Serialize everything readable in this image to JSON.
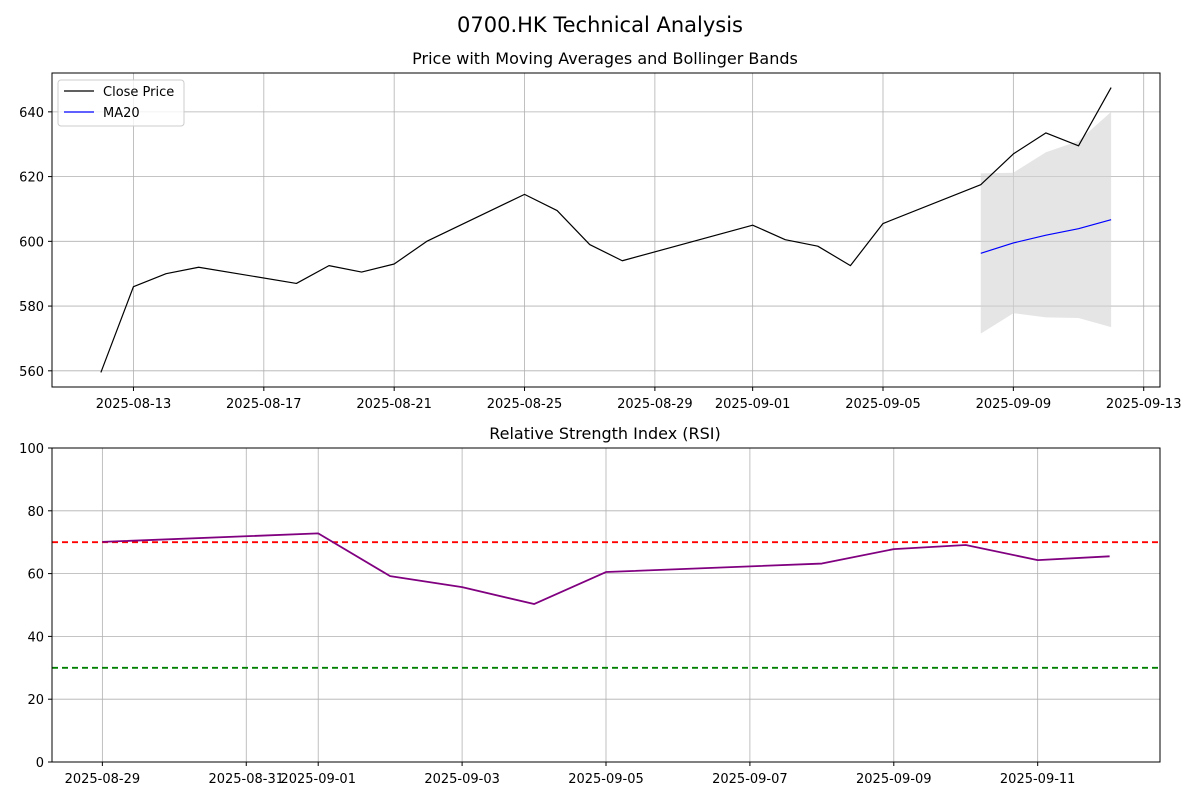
{
  "figure": {
    "title": "0700.HK Technical Analysis"
  },
  "chart_data": [
    {
      "type": "line",
      "title": "Price with Moving Averages and Bollinger Bands",
      "xlabel": "",
      "ylabel": "",
      "x_ticks": [
        "2025-08-13",
        "2025-08-17",
        "2025-08-21",
        "2025-08-25",
        "2025-08-29",
        "2025-09-01",
        "2025-09-05",
        "2025-09-09",
        "2025-09-13"
      ],
      "ylim": [
        555,
        652
      ],
      "y_ticks": [
        560,
        580,
        600,
        620,
        640
      ],
      "grid": true,
      "legend": "top-left",
      "series": [
        {
          "name": "Close Price",
          "color": "#000000",
          "points": [
            [
              "2025-08-12",
              559.5
            ],
            [
              "2025-08-13",
              586
            ],
            [
              "2025-08-14",
              590
            ],
            [
              "2025-08-15",
              592
            ],
            [
              "2025-08-18",
              587
            ],
            [
              "2025-08-19",
              592.5
            ],
            [
              "2025-08-20",
              590.5
            ],
            [
              "2025-08-21",
              593
            ],
            [
              "2025-08-22",
              600
            ],
            [
              "2025-08-25",
              614.5
            ],
            [
              "2025-08-26",
              609.5
            ],
            [
              "2025-08-27",
              599
            ],
            [
              "2025-08-28",
              594
            ],
            [
              "2025-09-01",
              605
            ],
            [
              "2025-09-02",
              600.5
            ],
            [
              "2025-09-03",
              598.5
            ],
            [
              "2025-09-04",
              592.5
            ],
            [
              "2025-09-05",
              605.5
            ],
            [
              "2025-09-08",
              617.5
            ],
            [
              "2025-09-09",
              627
            ],
            [
              "2025-09-10",
              633.5
            ],
            [
              "2025-09-11",
              629.5
            ],
            [
              "2025-09-12",
              647.5
            ]
          ]
        },
        {
          "name": "MA20",
          "color": "#0000ff",
          "points": [
            [
              "2025-09-08",
              596.3
            ],
            [
              "2025-09-09",
              599.5
            ],
            [
              "2025-09-10",
              601.9
            ],
            [
              "2025-09-11",
              603.9
            ],
            [
              "2025-09-12",
              606.7
            ]
          ]
        }
      ],
      "bollinger_band": {
        "color": "#d3d3d3",
        "upper": [
          [
            "2025-09-08",
            621
          ],
          [
            "2025-09-09",
            621.2
          ],
          [
            "2025-09-10",
            627.5
          ],
          [
            "2025-09-11",
            631
          ],
          [
            "2025-09-12",
            640
          ]
        ],
        "lower": [
          [
            "2025-09-08",
            571.5
          ],
          [
            "2025-09-09",
            577.8
          ],
          [
            "2025-09-10",
            576.5
          ],
          [
            "2025-09-11",
            576.3
          ],
          [
            "2025-09-12",
            573.5
          ]
        ]
      }
    },
    {
      "type": "line",
      "title": "Relative Strength Index (RSI)",
      "xlabel": "",
      "ylabel": "",
      "x_ticks": [
        "2025-08-29",
        "2025-08-31",
        "2025-09-01",
        "2025-09-03",
        "2025-09-05",
        "2025-09-07",
        "2025-09-09",
        "2025-09-11"
      ],
      "ylim": [
        0,
        100
      ],
      "y_ticks": [
        0,
        20,
        40,
        60,
        80,
        100
      ],
      "grid": true,
      "series": [
        {
          "color": "#800080",
          "points": [
            [
              "2025-08-29",
              70.1
            ],
            [
              "2025-09-01",
              72.8
            ],
            [
              "2025-09-02",
              59.2
            ],
            [
              "2025-09-03",
              55.7
            ],
            [
              "2025-09-04",
              50.3
            ],
            [
              "2025-09-05",
              60.5
            ],
            [
              "2025-09-08",
              63.2
            ],
            [
              "2025-09-09",
              67.8
            ],
            [
              "2025-09-10",
              69.1
            ],
            [
              "2025-09-11",
              64.3
            ],
            [
              "2025-09-12",
              65.5
            ]
          ]
        }
      ],
      "reference_lines": [
        {
          "y": 70,
          "color": "#ff0000",
          "style": "dashed"
        },
        {
          "y": 30,
          "color": "#008000",
          "style": "dashed"
        }
      ]
    }
  ]
}
